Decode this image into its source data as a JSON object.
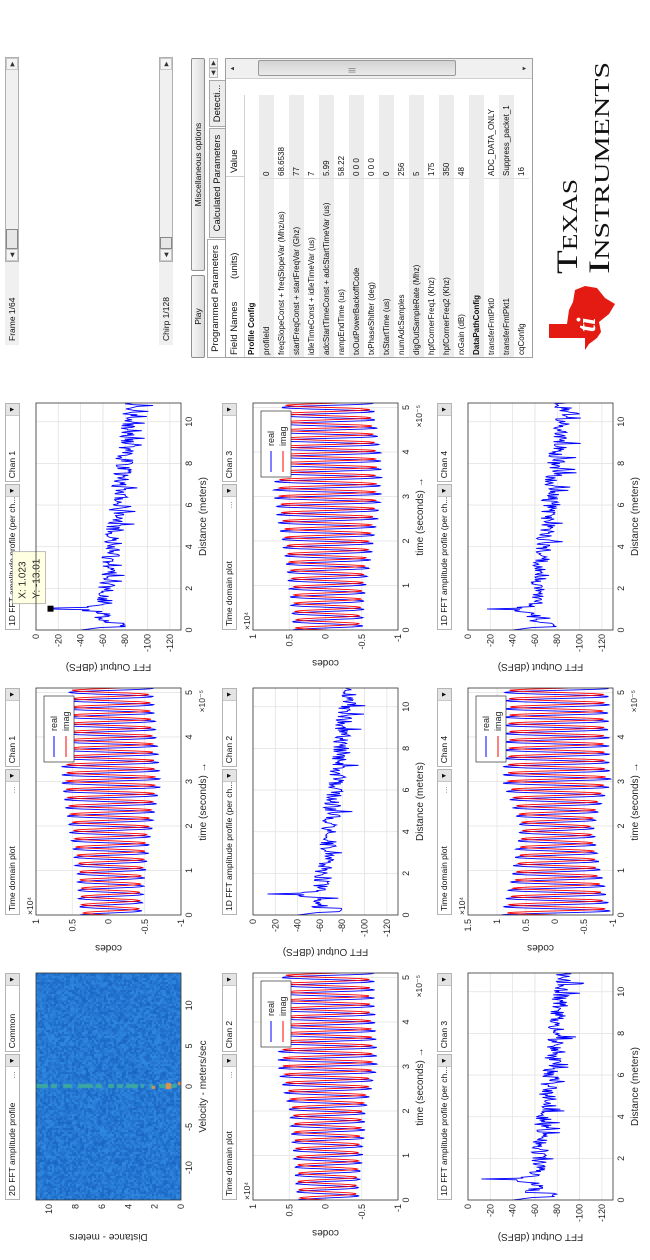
{
  "plots": [
    {
      "type": "heatmap",
      "title": "2D FFT amplitude profile",
      "dots": "...",
      "mode": "Common",
      "xlabel": "Velocity - meters/sec",
      "ylabel": "Distance - meters",
      "xticks": [
        -10,
        -5,
        0,
        5,
        10
      ],
      "yticks": [
        0,
        2,
        4,
        6,
        8,
        10
      ],
      "xlim": [
        -14,
        14
      ],
      "ylim": [
        0,
        11
      ],
      "colors": {
        "background": "#1f6fd2",
        "zero_velocity": "#3aa8a0",
        "target": "#e8904a"
      }
    },
    {
      "type": "time",
      "title": "Time domain plot",
      "dots": "...",
      "mode": "Chan 1",
      "xlabel": "time  (seconds) →",
      "ylabel": "codes",
      "yexp": "×10⁴",
      "xexp": "×10⁻⁵",
      "xticks": [
        0,
        1,
        2,
        3,
        4,
        5
      ],
      "yticks": [
        -1,
        -0.5,
        0,
        0.5,
        1
      ],
      "xlim": [
        0,
        5.1
      ],
      "ylim": [
        -1,
        1
      ],
      "envelope": [
        0.4,
        0.45,
        0.55,
        0.65,
        0.6,
        0.55
      ],
      "legend": [
        "real",
        "imag"
      ]
    },
    {
      "type": "fft",
      "title": "1D FFT amplitude profile (per ch...",
      "dots": "",
      "mode": "Chan 1",
      "xlabel": "Distance (meters)",
      "ylabel": "FFT Output (dBFS)",
      "xticks": [
        0,
        2,
        4,
        6,
        8,
        10
      ],
      "yticks": [
        0,
        -20,
        -40,
        -60,
        -80,
        -100,
        -120
      ],
      "xlim": [
        0,
        10.9
      ],
      "ylim": [
        -130,
        0
      ],
      "peak": {
        "x": 1.023,
        "y": -13.01
      },
      "datatip": {
        "x_label": "X: 1.023",
        "y_label": "Y: -13.01"
      }
    },
    {
      "type": "time",
      "title": "Time domain plot",
      "dots": "...",
      "mode": "Chan 2",
      "xlabel": "time  (seconds) →",
      "ylabel": "codes",
      "yexp": "×10⁴",
      "xexp": "×10⁻⁵",
      "xticks": [
        0,
        1,
        2,
        3,
        4,
        5
      ],
      "yticks": [
        -1,
        -0.5,
        0,
        0.5,
        1
      ],
      "xlim": [
        0,
        5.1
      ],
      "ylim": [
        -1,
        1
      ],
      "envelope": [
        0.4,
        0.45,
        0.5,
        0.65,
        0.62,
        0.6
      ],
      "legend": [
        "real",
        "imag"
      ]
    },
    {
      "type": "fft",
      "title": "1D FFT amplitude profile (per ch...",
      "dots": "",
      "mode": "Chan 2",
      "xlabel": "Distance (meters)",
      "ylabel": "FFT Output (dBFS)",
      "xticks": [
        0,
        2,
        4,
        6,
        8,
        10
      ],
      "yticks": [
        0,
        -20,
        -40,
        -60,
        -80,
        -100,
        -120
      ],
      "xlim": [
        0,
        10.9
      ],
      "ylim": [
        -130,
        0
      ],
      "peak": {
        "x": 1.0,
        "y": -13
      }
    },
    {
      "type": "time",
      "title": "Time domain plot",
      "dots": "...",
      "mode": "Chan 3",
      "xlabel": "time  (seconds) →",
      "ylabel": "codes",
      "yexp": "×10⁴",
      "xexp": "×10⁻⁵",
      "xticks": [
        0,
        1,
        2,
        3,
        4,
        5
      ],
      "yticks": [
        -1,
        -0.5,
        0,
        0.5,
        1
      ],
      "xlim": [
        0,
        5.1
      ],
      "ylim": [
        -1,
        1
      ],
      "envelope": [
        0.45,
        0.5,
        0.6,
        0.7,
        0.7,
        0.6
      ],
      "legend": [
        "real",
        "imag"
      ]
    },
    {
      "type": "fft",
      "title": "1D FFT amplitude profile (per ch...",
      "dots": "",
      "mode": "Chan 3",
      "xlabel": "Distance (meters)",
      "ylabel": "FFT Output (dBFS)",
      "xticks": [
        0,
        2,
        4,
        6,
        8,
        10
      ],
      "yticks": [
        0,
        -20,
        -40,
        -60,
        -80,
        -100,
        -120
      ],
      "xlim": [
        0,
        10.9
      ],
      "ylim": [
        -130,
        0
      ],
      "peak": {
        "x": 1.0,
        "y": -12
      }
    },
    {
      "type": "time",
      "title": "Time domain plot",
      "dots": "...",
      "mode": "Chan 4",
      "xlabel": "time  (seconds) →",
      "ylabel": "codes",
      "yexp": "×10⁴",
      "xexp": "×10⁻⁵",
      "xticks": [
        0,
        1,
        2,
        3,
        4,
        5
      ],
      "yticks": [
        -1,
        -0.5,
        0,
        0.5,
        1,
        1.5
      ],
      "xlim": [
        0,
        5.1
      ],
      "ylim": [
        -1,
        1.5
      ],
      "envelope": [
        0.9,
        0.72,
        0.6,
        0.88,
        0.85,
        0.85
      ],
      "legend": [
        "real",
        "imag"
      ]
    },
    {
      "type": "fft",
      "title": "1D FFT amplitude profile (per ch...",
      "dots": "",
      "mode": "Chan 4",
      "xlabel": "Distance (meters)",
      "ylabel": "FFT Output (dBFS)",
      "xticks": [
        0,
        2,
        4,
        6,
        8,
        10
      ],
      "yticks": [
        0,
        -20,
        -40,
        -60,
        -80,
        -100,
        -120
      ],
      "xlim": [
        0,
        10.9
      ],
      "ylim": [
        -130,
        0
      ],
      "peak": {
        "x": 1.0,
        "y": -17
      }
    }
  ],
  "series_colors": {
    "real": "#0000ff",
    "imag": "#ff0000"
  },
  "controls": {
    "frame_label": "Frame 1/64",
    "frame_value": 1,
    "frame_total": 64,
    "chirp_label": "Chirp 1/128",
    "chirp_value": 1,
    "chirp_total": 128,
    "play_label": "Play",
    "misc_label": "Miscellaneous options"
  },
  "tabs": [
    {
      "label": "Programmed Parameters",
      "active": true
    },
    {
      "label": "Calculated Parameters",
      "active": false
    },
    {
      "label": "Detecti...",
      "active": false
    }
  ],
  "table": {
    "header_field": "Field Names",
    "header_units": "(units)",
    "header_value": "Value",
    "scroll_grip": "|||",
    "rows": [
      {
        "field": "Profile Config",
        "value": "",
        "bold": true
      },
      {
        "field": "profileId",
        "value": "0"
      },
      {
        "field": "freqSlopeConst + freqSlopeVar (Mhz/us)",
        "value": "68.6538"
      },
      {
        "field": "startFreqConst + startFreqVar (Ghz)",
        "value": "77"
      },
      {
        "field": "idleTimeConst + idleTimeVar (us)",
        "value": "7"
      },
      {
        "field": "adcStartTimeConst + adcStartTimeVar (us)",
        "value": "5.99"
      },
      {
        "field": "rampEndTime (us)",
        "value": "58.22"
      },
      {
        "field": "txOutPowerBackoffCode",
        "value": "0 0 0"
      },
      {
        "field": "txPhaseShifter (deg)",
        "value": "0 0 0"
      },
      {
        "field": "txStartTime (us)",
        "value": "0"
      },
      {
        "field": "numAdcSamples",
        "value": "256"
      },
      {
        "field": "digOutSampleRate (Mhz)",
        "value": "5"
      },
      {
        "field": "hpfCornerFreq1 (Khz)",
        "value": "175"
      },
      {
        "field": "hpfCornerFreq2 (Khz)",
        "value": "350"
      },
      {
        "field": "rxGain (dB)",
        "value": "48"
      },
      {
        "field": "DataPathConfig",
        "value": "",
        "bold": true
      },
      {
        "field": "transferFmtPkt0",
        "value": "ADC_DATA_ONLY"
      },
      {
        "field": "transferFmtPkt1",
        "value": "Suppress_packet_1"
      },
      {
        "field": "cqConfig",
        "value": "16"
      }
    ]
  },
  "logo": {
    "line1": "Texas",
    "line2": "Instruments",
    "color": "#e41b13"
  }
}
